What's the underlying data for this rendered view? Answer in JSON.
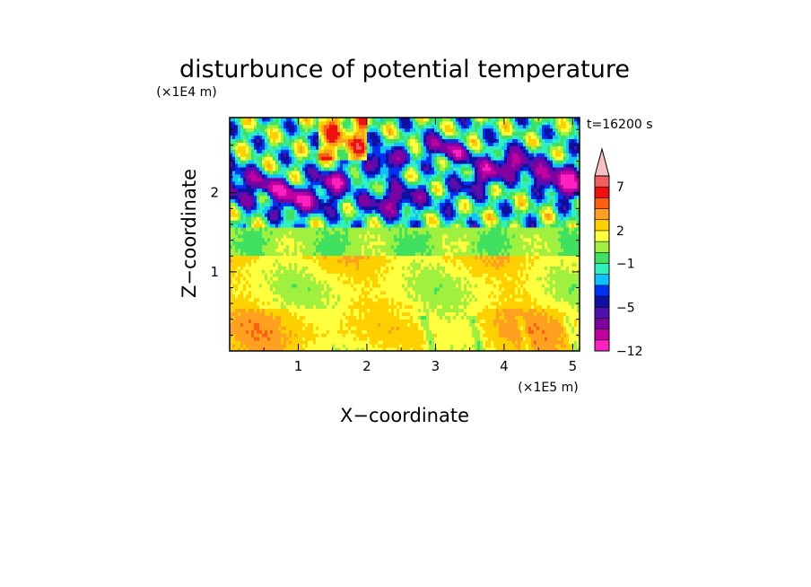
{
  "chart_data": {
    "type": "heatmap",
    "title": "disturbunce of potential temperature",
    "xlabel": "X−coordinate",
    "ylabel": "Z−coordinate",
    "x_unit": "(×1E5 m)",
    "z_unit": "(×1E4 m)",
    "time_label": "t=16200 s",
    "xlim": [
      0,
      5.1
    ],
    "zlim": [
      0,
      2.95
    ],
    "x_ticks": [
      1,
      2,
      3,
      4,
      5
    ],
    "x_tick_labels": [
      "1",
      "2",
      "3",
      "4",
      "5"
    ],
    "z_ticks": [
      1,
      2
    ],
    "z_tick_labels": [
      "1",
      "2"
    ],
    "colorbar": {
      "levels": [
        -12,
        -10,
        -8,
        -6,
        -5,
        -4,
        -3,
        -2,
        -1,
        0,
        1,
        2,
        3,
        4,
        5,
        7,
        9,
        11
      ],
      "tick_labels": [
        "−12",
        "−5",
        "−1",
        "2",
        "7"
      ],
      "tick_values": [
        -12,
        -5,
        -1,
        2,
        7
      ],
      "colors": [
        "#ff20c0",
        "#c000a0",
        "#8000a0",
        "#5010b0",
        "#1010a0",
        "#0030f0",
        "#10c0ff",
        "#30f0c0",
        "#40e060",
        "#a0f040",
        "#ffff40",
        "#ffd000",
        "#ffa020",
        "#ff6010",
        "#f01010",
        "#f06060",
        "#f8c0c0"
      ]
    },
    "bands": [
      {
        "z_range": [
          0.0,
          0.6
        ],
        "approx_value": 3,
        "description_value": "warm"
      },
      {
        "z_range": [
          0.6,
          1.2
        ],
        "approx_value": 1.5
      },
      {
        "z_range": [
          1.2,
          1.5
        ],
        "approx_value": 0
      },
      {
        "z_range": [
          1.5,
          2.0
        ],
        "approx_value": -1
      },
      {
        "z_range": [
          2.0,
          2.95
        ],
        "approx_value_range": [
          -8,
          7
        ]
      }
    ]
  }
}
